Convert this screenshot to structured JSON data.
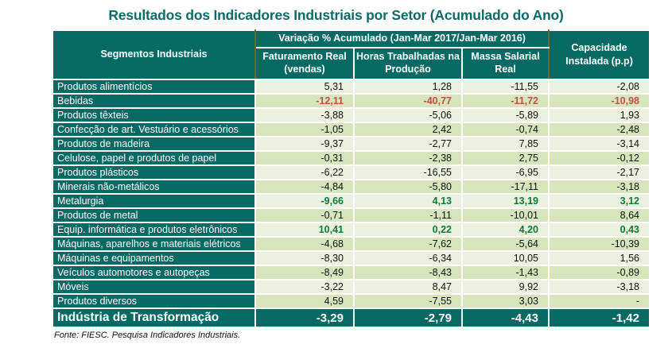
{
  "title": "Resultados dos Indicadores Industriais por Setor (Acumulado do Ano)",
  "footnote": "Fonte: FIESC. Pesquisa Indicadores Industriais.",
  "colors": {
    "header_teal": "#066a64",
    "title_teal": "#0a6b68",
    "row_light": "#ebf1de",
    "row_dark": "#d7e4bc",
    "negative_highlight_red": "#c0504d",
    "positive_highlight_green": "#0b7b38",
    "header_divider_olive": "#6d6a28"
  },
  "table": {
    "header": {
      "col_segments": "Segmentos Industriais",
      "group_variation": "Variação % Acumulado (Jan-Mar 2017/Jan-Mar 2016)",
      "col_faturamento": "Faturamento Real (vendas)",
      "col_horas": "Horas Trabalhadas na Produção",
      "col_massa": "Massa Salarial Real",
      "col_capacidade": "Capacidade Instalada (p.p)"
    },
    "rows": [
      {
        "label": "Produtos alimentícios",
        "values": [
          "5,31",
          "1,28",
          "-11,55",
          "-2,08"
        ],
        "highlight": "none"
      },
      {
        "label": "Bebidas",
        "values": [
          "-12,11",
          "-40,77",
          "-11,72",
          "-10,98"
        ],
        "highlight": "red"
      },
      {
        "label": "Produtos têxteis",
        "values": [
          "-3,88",
          "-5,06",
          "-5,89",
          "1,93"
        ],
        "highlight": "none"
      },
      {
        "label": "Confecção de art. Vestuário e acessórios",
        "values": [
          "-1,05",
          "2,42",
          "-0,74",
          "-2,48"
        ],
        "highlight": "none"
      },
      {
        "label": "Produtos de madeira",
        "values": [
          "-9,37",
          "-2,77",
          "7,85",
          "-3,14"
        ],
        "highlight": "none"
      },
      {
        "label": "Celulose, papel e produtos de papel",
        "values": [
          "-0,31",
          "-2,38",
          "2,75",
          "-0,12"
        ],
        "highlight": "none"
      },
      {
        "label": "Produtos plásticos",
        "values": [
          "-6,22",
          "-16,55",
          "-6,95",
          "-2,17"
        ],
        "highlight": "none"
      },
      {
        "label": "Minerais não-metálicos",
        "values": [
          "-4,84",
          "-5,80",
          "-17,11",
          "-3,18"
        ],
        "highlight": "none"
      },
      {
        "label": "Metalurgia",
        "values": [
          "-9,66",
          "4,13",
          "13,19",
          "3,12"
        ],
        "highlight": "green"
      },
      {
        "label": "Produtos de metal",
        "values": [
          "-0,71",
          "-1,11",
          "-10,01",
          "8,64"
        ],
        "highlight": "none"
      },
      {
        "label": "Equip. informática e produtos eletrônicos",
        "values": [
          "10,41",
          "0,22",
          "4,20",
          "0,43"
        ],
        "highlight": "green"
      },
      {
        "label": "Máquinas, aparelhos e materiais elétricos",
        "values": [
          "-4,68",
          "-7,62",
          "-5,64",
          "-10,39"
        ],
        "highlight": "none"
      },
      {
        "label": "Máquinas e equipamentos",
        "values": [
          "-8,30",
          "-6,34",
          "10,05",
          "1,56"
        ],
        "highlight": "none"
      },
      {
        "label": "Veículos automotores e autopeças",
        "values": [
          "-8,49",
          "-8,43",
          "-1,43",
          "-0,89"
        ],
        "highlight": "none"
      },
      {
        "label": "Móveis",
        "values": [
          "-3,22",
          "8,47",
          "9,92",
          "-3,18"
        ],
        "highlight": "none"
      },
      {
        "label": "Produtos diversos",
        "values": [
          "4,59",
          "-7,55",
          "3,03",
          "-"
        ],
        "highlight": "none"
      }
    ],
    "total": {
      "label": "Indústria de Transformação",
      "values": [
        "-3,29",
        "-2,79",
        "-4,43",
        "-1,42"
      ]
    }
  }
}
